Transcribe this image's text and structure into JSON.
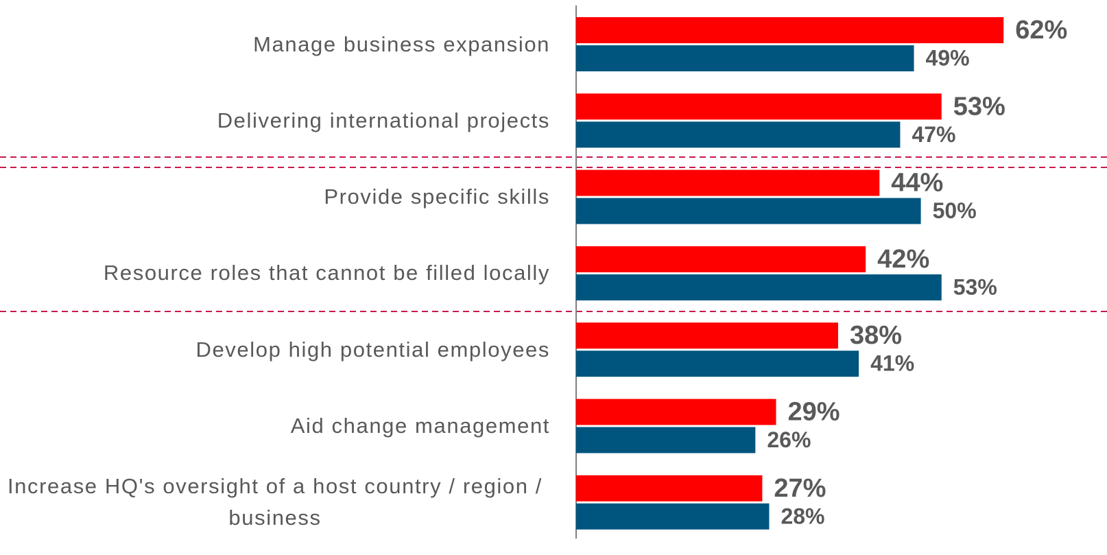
{
  "chart_data": {
    "type": "bar",
    "orientation": "horizontal",
    "categories": [
      "Manage business expansion",
      "Delivering international projects",
      "Provide specific skills",
      "Resource roles that cannot be filled locally",
      "Develop high potential employees",
      "Aid change management",
      "Increase HQ's oversight of a host country / region / business"
    ],
    "series": [
      {
        "color": "#ff0000",
        "values": [
          62,
          53,
          44,
          42,
          38,
          29,
          27
        ],
        "value_labels": [
          "62%",
          "53%",
          "44%",
          "42%",
          "38%",
          "29%",
          "27%"
        ]
      },
      {
        "color": "#00557f",
        "values": [
          49,
          47,
          50,
          53,
          41,
          26,
          28
        ],
        "value_labels": [
          "49%",
          "47%",
          "50%",
          "53%",
          "41%",
          "26%",
          "28%"
        ]
      }
    ],
    "xlim": [
      0,
      77
    ]
  }
}
